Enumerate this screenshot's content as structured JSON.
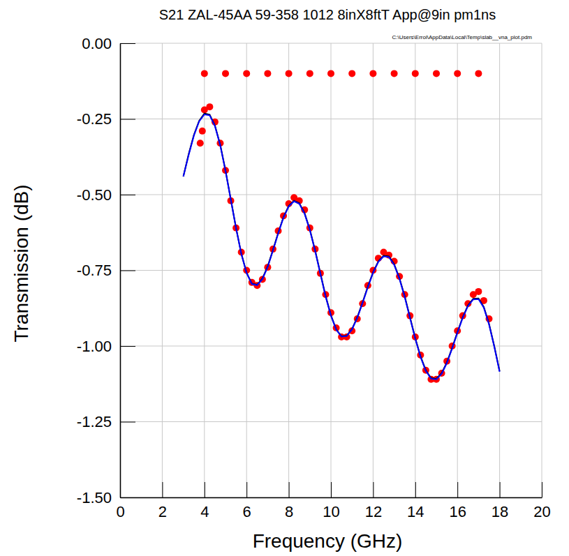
{
  "chart_data": {
    "type": "line",
    "title": "S21 ZAL-45AA 59-358 1012 8inX8ftT App@9in pm1ns",
    "annotations": [
      "C:\\Users\\Errol\\AppData\\Local\\Temp\\slab__vna_plot.pdm"
    ],
    "x_label": "Frequency (GHz)",
    "y_label": "Transmission (dB)",
    "xlim": [
      0,
      20
    ],
    "xticks": [
      0,
      2,
      4,
      6,
      8,
      10,
      12,
      14,
      16,
      18,
      20
    ],
    "ylim": [
      -1.5,
      0
    ],
    "yticks": [
      {
        "value": -1.5,
        "label": "-1.50"
      },
      -1.25,
      {
        "value": -1,
        "label": "-1.00"
      },
      -0.75,
      {
        "value": -0.5,
        "label": "-0.50"
      },
      -0.25,
      {
        "value": 0,
        "label": "0.00"
      }
    ],
    "grid": true,
    "series": [
      {
        "type": "scatter",
        "color": "#ff0000",
        "marker": "circle",
        "x": [
          4,
          5,
          6,
          7,
          8,
          9,
          10,
          11,
          12,
          13,
          14,
          15,
          16,
          17
        ],
        "values": [
          -0.1,
          -0.1,
          -0.1,
          -0.1,
          -0.1,
          -0.1,
          -0.1,
          -0.1,
          -0.1,
          -0.1,
          -0.1,
          -0.1,
          -0.1,
          -0.1
        ]
      },
      {
        "type": "scatter",
        "color": "#ff0000",
        "marker": "circle",
        "x": [
          3.8,
          3.9,
          4.0,
          4.25,
          4.5,
          4.75,
          5.0,
          5.25,
          5.5,
          5.75,
          6.0,
          6.25,
          6.5,
          6.75,
          7.0,
          7.25,
          7.5,
          7.75,
          8.0,
          8.25,
          8.5,
          8.75,
          9.0,
          9.25,
          9.5,
          9.75,
          10.0,
          10.25,
          10.5,
          10.75,
          11.0,
          11.25,
          11.5,
          11.75,
          12.0,
          12.25,
          12.5,
          12.75,
          13.0,
          13.25,
          13.5,
          13.75,
          14.0,
          14.25,
          14.5,
          14.75,
          15.0,
          15.25,
          15.5,
          15.75,
          16.0,
          16.25,
          16.5,
          16.75,
          17.0,
          17.25,
          17.5
        ],
        "values": [
          -0.33,
          -0.29,
          -0.22,
          -0.21,
          -0.26,
          -0.33,
          -0.42,
          -0.52,
          -0.61,
          -0.69,
          -0.75,
          -0.79,
          -0.8,
          -0.78,
          -0.74,
          -0.68,
          -0.62,
          -0.57,
          -0.53,
          -0.51,
          -0.52,
          -0.55,
          -0.61,
          -0.68,
          -0.76,
          -0.83,
          -0.89,
          -0.94,
          -0.97,
          -0.97,
          -0.95,
          -0.91,
          -0.86,
          -0.8,
          -0.75,
          -0.71,
          -0.69,
          -0.7,
          -0.72,
          -0.77,
          -0.83,
          -0.9,
          -0.97,
          -1.03,
          -1.08,
          -1.11,
          -1.11,
          -1.09,
          -1.05,
          -1.0,
          -0.95,
          -0.9,
          -0.86,
          -0.83,
          -0.82,
          -0.85,
          -0.91
        ]
      },
      {
        "type": "line",
        "color": "#000000",
        "line_style": "solid",
        "x": [
          3.0,
          3.25,
          3.5,
          3.75,
          4.0,
          4.25,
          4.5,
          4.75,
          5.0,
          5.25,
          5.5,
          5.75,
          6.0,
          6.25,
          6.5,
          6.75,
          7.0,
          7.25,
          7.5,
          7.75,
          8.0,
          8.25,
          8.5,
          8.75,
          9.0,
          9.25,
          9.5,
          9.75,
          10.0,
          10.25,
          10.5,
          10.75,
          11.0,
          11.25,
          11.5,
          11.75,
          12.0,
          12.25,
          12.5,
          12.75,
          13.0,
          13.25,
          13.5,
          13.75,
          14.0,
          14.25,
          14.5,
          14.75,
          15.0,
          15.25,
          15.5,
          15.75,
          16.0,
          16.25,
          16.5,
          16.75,
          17.0,
          17.25,
          17.5,
          17.75,
          18.0
        ],
        "values": [
          -0.44,
          -0.367,
          -0.303,
          -0.256,
          -0.232,
          -0.236,
          -0.272,
          -0.335,
          -0.42,
          -0.515,
          -0.61,
          -0.695,
          -0.758,
          -0.794,
          -0.798,
          -0.777,
          -0.737,
          -0.683,
          -0.626,
          -0.574,
          -0.537,
          -0.52,
          -0.528,
          -0.561,
          -0.615,
          -0.684,
          -0.76,
          -0.835,
          -0.898,
          -0.945,
          -0.968,
          -0.966,
          -0.944,
          -0.905,
          -0.856,
          -0.804,
          -0.756,
          -0.72,
          -0.702,
          -0.704,
          -0.73,
          -0.776,
          -0.836,
          -0.905,
          -0.974,
          -1.034,
          -1.08,
          -1.106,
          -1.108,
          -1.09,
          -1.054,
          -1.006,
          -0.954,
          -0.905,
          -0.866,
          -0.844,
          -0.843,
          -0.871,
          -0.927,
          -1.001,
          -1.083
        ]
      },
      {
        "type": "line",
        "color": "#0000ff",
        "line_style": "solid",
        "x": [
          3.0,
          3.25,
          3.5,
          3.75,
          4.0,
          4.25,
          4.5,
          4.75,
          5.0,
          5.25,
          5.5,
          5.75,
          6.0,
          6.25,
          6.5,
          6.75,
          7.0,
          7.25,
          7.5,
          7.75,
          8.0,
          8.25,
          8.5,
          8.75,
          9.0,
          9.25,
          9.5,
          9.75,
          10.0,
          10.25,
          10.5,
          10.75,
          11.0,
          11.25,
          11.5,
          11.75,
          12.0,
          12.25,
          12.5,
          12.75,
          13.0,
          13.25,
          13.5,
          13.75,
          14.0,
          14.25,
          14.5,
          14.75,
          15.0,
          15.25,
          15.5,
          15.75,
          16.0,
          16.25,
          16.5,
          16.75,
          17.0,
          17.25,
          17.5,
          17.75,
          18.0
        ],
        "values": [
          -0.44,
          -0.37,
          -0.305,
          -0.258,
          -0.235,
          -0.238,
          -0.274,
          -0.337,
          -0.422,
          -0.516,
          -0.611,
          -0.696,
          -0.759,
          -0.795,
          -0.799,
          -0.779,
          -0.739,
          -0.685,
          -0.628,
          -0.576,
          -0.539,
          -0.522,
          -0.53,
          -0.563,
          -0.617,
          -0.686,
          -0.762,
          -0.837,
          -0.9,
          -0.946,
          -0.969,
          -0.967,
          -0.945,
          -0.907,
          -0.858,
          -0.806,
          -0.758,
          -0.722,
          -0.704,
          -0.706,
          -0.732,
          -0.778,
          -0.838,
          -0.907,
          -0.976,
          -1.036,
          -1.082,
          -1.108,
          -1.11,
          -1.092,
          -1.056,
          -1.008,
          -0.956,
          -0.907,
          -0.868,
          -0.846,
          -0.845,
          -0.873,
          -0.929,
          -1.003,
          -1.085
        ]
      }
    ]
  }
}
